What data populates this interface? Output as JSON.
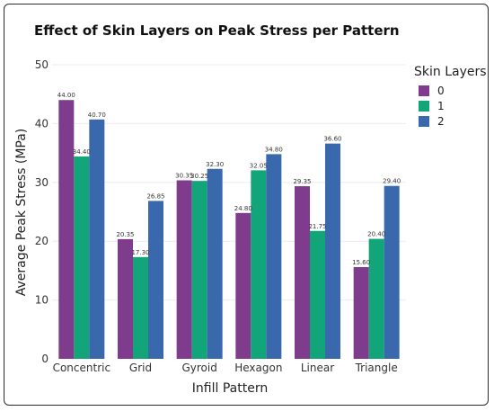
{
  "chart_data": {
    "type": "bar",
    "title": "Effect of Skin Layers on Peak Stress per Pattern",
    "xlabel": "Infill Pattern",
    "ylabel": "Average Peak Stress (MPa)",
    "ylim": [
      0,
      50
    ],
    "yticks": [
      0,
      10,
      20,
      30,
      40,
      50
    ],
    "grid": true,
    "legend_title": "Skin Layers",
    "legend_position": "top-right",
    "categories": [
      "Concentric",
      "Grid",
      "Gyroid",
      "Hexagon",
      "Linear",
      "Triangle"
    ],
    "series": [
      {
        "name": "0",
        "color": "#7f3c8d",
        "values": [
          44.0,
          20.35,
          30.35,
          24.8,
          29.35,
          15.6
        ],
        "labels": [
          "44.00",
          "20.35",
          "30.35",
          "24.80",
          "29.35",
          "15.60"
        ]
      },
      {
        "name": "1",
        "color": "#11a579",
        "values": [
          34.4,
          17.3,
          30.25,
          32.05,
          21.75,
          20.4
        ],
        "labels": [
          "34.40",
          "17.30",
          "30.25",
          "32.05",
          "21.75",
          "20.40"
        ]
      },
      {
        "name": "2",
        "color": "#3969ac",
        "values": [
          40.7,
          26.85,
          32.3,
          34.8,
          36.6,
          29.4
        ],
        "labels": [
          "40.70",
          "26.85",
          "32.30",
          "34.80",
          "36.60",
          "29.40"
        ]
      }
    ]
  }
}
